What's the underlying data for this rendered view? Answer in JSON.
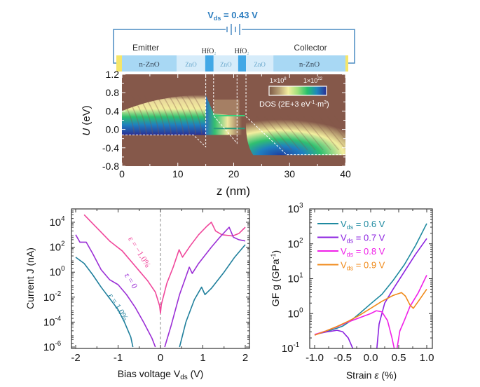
{
  "schematic": {
    "voltage_label_main": "V",
    "voltage_label_sub": "ds",
    "voltage_label_value": " = 0.43 V",
    "emitter_label": "Emitter",
    "collector_label": "Collector",
    "layers": [
      {
        "name": "contact",
        "label": "",
        "color": "#f5e66a",
        "z": [
          -1.0,
          0.0
        ]
      },
      {
        "name": "n-ZnO",
        "label": "n-ZnO",
        "color": "#a8d8f4",
        "z": [
          0.0,
          9.8
        ]
      },
      {
        "name": "ZnO",
        "label": "ZnO",
        "color": "#d6ecfa",
        "z": [
          9.8,
          14.9
        ]
      },
      {
        "name": "HfO2",
        "label": "",
        "color": "#42a8e6",
        "z": [
          14.9,
          16.4
        ]
      },
      {
        "name": "ZnO",
        "label": "ZnO",
        "color": "#d6ecfa",
        "z": [
          16.4,
          20.8
        ]
      },
      {
        "name": "HfO2",
        "label": "",
        "color": "#42a8e6",
        "z": [
          20.8,
          22.2
        ]
      },
      {
        "name": "ZnO",
        "label": "ZnO",
        "color": "#d6ecfa",
        "z": [
          22.2,
          27.1
        ]
      },
      {
        "name": "n-ZnO",
        "label": "n-ZnO",
        "color": "#a8d8f4",
        "z": [
          27.1,
          40.0
        ]
      },
      {
        "name": "contact",
        "label": "",
        "color": "#f5e66a",
        "z": [
          40.0,
          40.5
        ]
      }
    ],
    "hfo2_label": "HfO",
    "hfo2_sub": "2",
    "circuit_color": "#4a8bc2"
  },
  "chart_data": [
    {
      "type": "heatmap",
      "title": "",
      "xlabel": "z (nm)",
      "ylabel_italic": "U",
      "ylabel_rest": " (eV)",
      "xlim": [
        0,
        40
      ],
      "ylim": [
        -0.8,
        1.2
      ],
      "xticks": [
        "0",
        "10",
        "20",
        "30",
        "40"
      ],
      "yticks": [
        "1.2",
        "0.8",
        "0.4",
        "0.0",
        "-0.4",
        "-0.8"
      ],
      "colorbar": {
        "min_label": "1×10",
        "min_exp": "8",
        "max_label": "1×10",
        "max_exp": "22",
        "title": "DOS (2E+3 eV",
        "title_exp1": "-1",
        "title_mid": "·m",
        "title_exp2": "3",
        "title_end": ")",
        "colors": [
          "#7b5844",
          "#b59c72",
          "#f3ee9e",
          "#9fe07a",
          "#27c06c",
          "#1f86be",
          "#2a2f94"
        ]
      },
      "background_color": "#85584a",
      "band_edge": [
        [
          0,
          -0.12
        ],
        [
          12.8,
          -0.12
        ],
        [
          15.0,
          -0.38
        ],
        [
          15.0,
          1.2
        ]
      ],
      "band_edge_2": [
        [
          16.4,
          1.2
        ],
        [
          16.4,
          0.3
        ],
        [
          20.6,
          -0.3
        ],
        [
          20.6,
          1.2
        ]
      ],
      "band_edge_3": [
        [
          22.2,
          1.2
        ],
        [
          22.2,
          0.28
        ],
        [
          29.5,
          -0.55
        ],
        [
          40,
          -0.55
        ]
      ],
      "resonant_levels_U": [
        0.3,
        0.02
      ],
      "emitter_fermi_U": -0.12,
      "collector_floor_U": -0.55
    },
    {
      "type": "line",
      "title": "",
      "xlabel": "Bias voltage V",
      "xlabel_sub": "ds",
      "xlabel_end": " (V)",
      "ylabel": "Current J (nA)",
      "xlim": [
        -2,
        2
      ],
      "ylim_log10": [
        -6,
        5
      ],
      "yscale": "log",
      "xticks": [
        "-2",
        "-1",
        "0",
        "1",
        "2"
      ],
      "yticks": [
        {
          "base": "10",
          "exp": "4",
          "value": 4
        },
        {
          "base": "10",
          "exp": "2",
          "value": 2
        },
        {
          "base": "10",
          "exp": "0",
          "value": 0
        },
        {
          "base": "10",
          "exp": "-2",
          "value": -2
        },
        {
          "base": "10",
          "exp": "-4",
          "value": -4
        },
        {
          "base": "10",
          "exp": "-6",
          "value": -6
        }
      ],
      "zero_line": true,
      "series": [
        {
          "name": "ε = −1.0%",
          "color": "#f0479b",
          "log10_points": [
            [
              -1.8,
              4.6
            ],
            [
              -1.6,
              3.9
            ],
            [
              -1.4,
              3.2
            ],
            [
              -1.2,
              2.5
            ],
            [
              -1.05,
              2.1
            ],
            [
              -0.9,
              1.7
            ],
            [
              -0.7,
              0.9
            ],
            [
              -0.5,
              0.1
            ],
            [
              -0.3,
              -0.7
            ],
            [
              -0.12,
              -1.6
            ],
            [
              -0.02,
              -2.7
            ],
            [
              0.0,
              -3.3
            ],
            [
              0.02,
              -2.6
            ],
            [
              0.15,
              -0.9
            ],
            [
              0.3,
              0.4
            ],
            [
              0.44,
              1.8
            ],
            [
              0.52,
              1.2
            ],
            [
              0.7,
              2.1
            ],
            [
              0.9,
              3.0
            ],
            [
              1.1,
              3.7
            ],
            [
              1.2,
              4.0
            ],
            [
              1.3,
              3.3
            ],
            [
              1.45,
              3.0
            ],
            [
              1.7,
              2.9
            ],
            [
              1.85,
              3.1
            ],
            [
              2.0,
              3.6
            ]
          ]
        },
        {
          "name": "ε = 0",
          "color": "#9b2fd6",
          "log10_points": [
            [
              -2.0,
              3.0
            ],
            [
              -1.9,
              2.4
            ],
            [
              -1.75,
              2.4
            ],
            [
              -1.6,
              1.5
            ],
            [
              -1.4,
              0.2
            ],
            [
              -1.2,
              -0.6
            ],
            [
              -1.0,
              -1.0
            ],
            [
              -0.8,
              -1.8
            ],
            [
              -0.6,
              -2.8
            ],
            [
              -0.4,
              -4.0
            ],
            [
              -0.2,
              -5.3
            ],
            [
              -0.12,
              -6.0
            ]
          ],
          "log10_points_pos": [
            [
              0.1,
              -6.0
            ],
            [
              0.25,
              -4.3
            ],
            [
              0.45,
              -1.8
            ],
            [
              0.68,
              0.4
            ],
            [
              0.75,
              -0.1
            ],
            [
              0.9,
              0.7
            ],
            [
              1.2,
              2.0
            ],
            [
              1.4,
              2.8
            ],
            [
              1.62,
              3.6
            ],
            [
              1.72,
              2.8
            ],
            [
              1.85,
              2.6
            ],
            [
              2.0,
              2.5
            ]
          ]
        },
        {
          "name": "ε = 1.0%",
          "color": "#1f7f9c",
          "log10_points": [
            [
              -2.0,
              1.2
            ],
            [
              -1.8,
              0.7
            ],
            [
              -1.6,
              -0.2
            ],
            [
              -1.4,
              -1.2
            ],
            [
              -1.2,
              -2.1
            ],
            [
              -1.0,
              -3.0
            ],
            [
              -0.85,
              -4.0
            ],
            [
              -0.7,
              -5.2
            ],
            [
              -0.65,
              -6.0
            ]
          ],
          "log10_points_pos": [
            [
              0.45,
              -6.0
            ],
            [
              0.6,
              -4.0
            ],
            [
              0.8,
              -2.2
            ],
            [
              0.97,
              -1.2
            ],
            [
              1.05,
              -1.8
            ],
            [
              1.2,
              -1.3
            ],
            [
              1.5,
              0.0
            ],
            [
              1.75,
              1.2
            ],
            [
              2.0,
              2.2
            ]
          ]
        }
      ],
      "annotations": [
        {
          "text": "ε = −1.0%",
          "color": "#f0479b",
          "x": -0.55,
          "y_log10": 1.5,
          "rotation_deg": 58
        },
        {
          "text": "ε = 0",
          "color": "#9b2fd6",
          "x": -0.75,
          "y_log10": -0.8,
          "rotation_deg": 58
        },
        {
          "text": "ε = 1.0%",
          "color": "#1f7f9c",
          "x": -1.05,
          "y_log10": -2.9,
          "rotation_deg": 58
        }
      ]
    },
    {
      "type": "line",
      "title": "",
      "xlabel": "Strain ",
      "xlabel_italic": "ε",
      "xlabel_end": " (%)",
      "ylabel": "GF g (GPa",
      "ylabel_exp": "-1",
      "ylabel_end": ")",
      "xlim": [
        -1.1,
        1.1
      ],
      "ylim_log10": [
        -1,
        3
      ],
      "yscale": "log",
      "xticks": [
        "-1.0",
        "-0.5",
        "0.0",
        "0.5",
        "1.0"
      ],
      "yticks": [
        {
          "base": "10",
          "exp": "3",
          "value": 3
        },
        {
          "base": "10",
          "exp": "2",
          "value": 2
        },
        {
          "base": "10",
          "exp": "1",
          "value": 1
        },
        {
          "base": "10",
          "exp": "0",
          "value": 0
        },
        {
          "base": "10",
          "exp": "-1",
          "value": -1
        }
      ],
      "legend_position": "top-left",
      "series": [
        {
          "name": "V_ds = 0.6 V",
          "legend_prefix": "V",
          "legend_sub": "ds",
          "legend_value": " = 0.6 V",
          "color": "#1f8aa0",
          "log10_points": [
            [
              -1.0,
              -0.6
            ],
            [
              -0.8,
              -0.52
            ],
            [
              -0.6,
              -0.42
            ],
            [
              -0.5,
              -0.36
            ],
            [
              -0.35,
              -0.2
            ],
            [
              -0.2,
              0.0
            ],
            [
              0.0,
              0.28
            ],
            [
              0.2,
              0.55
            ],
            [
              0.4,
              0.95
            ],
            [
              0.6,
              1.4
            ],
            [
              0.8,
              1.95
            ],
            [
              1.0,
              2.58
            ]
          ]
        },
        {
          "name": "V_ds = 0.7 V",
          "legend_prefix": "V",
          "legend_sub": "ds",
          "legend_value": " = 0.7 V",
          "color": "#8b22e0",
          "log10_points": [
            [
              -1.0,
              -0.6
            ],
            [
              -0.8,
              -0.53
            ],
            [
              -0.6,
              -0.48
            ],
            [
              -0.5,
              -0.52
            ],
            [
              -0.4,
              -0.7
            ],
            [
              -0.32,
              -1.0
            ]
          ],
          "log10_points_pos": [
            [
              0.11,
              -1.0
            ],
            [
              0.15,
              -0.3
            ],
            [
              0.25,
              0.3
            ],
            [
              0.4,
              0.7
            ],
            [
              0.6,
              1.2
            ],
            [
              0.8,
              1.7
            ],
            [
              1.0,
              2.15
            ]
          ]
        },
        {
          "name": "V_ds = 0.8 V",
          "legend_prefix": "V",
          "legend_sub": "ds",
          "legend_value": " = 0.8 V",
          "color": "#f020e8",
          "log10_points": [
            [
              -1.0,
              -0.6
            ],
            [
              -0.8,
              -0.5
            ],
            [
              -0.6,
              -0.38
            ],
            [
              -0.4,
              -0.24
            ],
            [
              -0.2,
              -0.12
            ],
            [
              0.0,
              0.0
            ],
            [
              0.1,
              0.08
            ],
            [
              0.2,
              0.05
            ],
            [
              0.3,
              -0.2
            ],
            [
              0.38,
              -0.7
            ],
            [
              0.42,
              -1.0
            ]
          ],
          "log10_points_pos": [
            [
              0.47,
              -1.0
            ],
            [
              0.52,
              -0.5
            ],
            [
              0.6,
              -0.2
            ],
            [
              0.7,
              0.2
            ],
            [
              0.85,
              0.6
            ],
            [
              1.0,
              1.1
            ]
          ]
        },
        {
          "name": "V_ds = 0.9 V",
          "legend_prefix": "V",
          "legend_sub": "ds",
          "legend_value": " = 0.9 V",
          "color": "#f08a1a",
          "log10_points": [
            [
              -1.0,
              -0.62
            ],
            [
              -0.8,
              -0.5
            ],
            [
              -0.6,
              -0.37
            ],
            [
              -0.4,
              -0.22
            ],
            [
              -0.2,
              -0.05
            ],
            [
              0.0,
              0.15
            ],
            [
              0.2,
              0.35
            ],
            [
              0.4,
              0.52
            ],
            [
              0.55,
              0.6
            ],
            [
              0.62,
              0.5
            ],
            [
              0.7,
              0.25
            ],
            [
              0.76,
              0.15
            ],
            [
              0.85,
              0.35
            ],
            [
              1.0,
              0.7
            ]
          ]
        }
      ]
    }
  ]
}
